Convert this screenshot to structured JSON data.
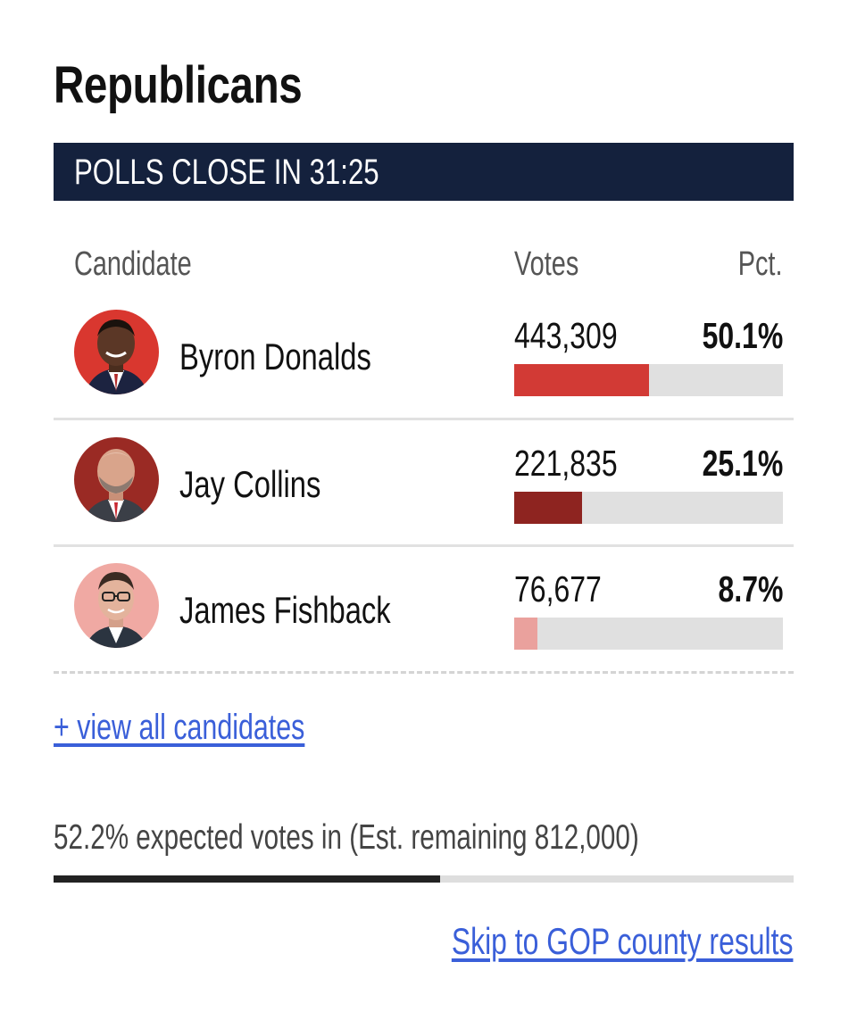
{
  "header": {
    "title": "Republicans",
    "banner": "POLLS CLOSE IN 31:25",
    "banner_color": "#14213d"
  },
  "table": {
    "columns": {
      "candidate": "Candidate",
      "votes": "Votes",
      "pct": "Pct."
    },
    "rows": [
      {
        "name": "Byron Donalds",
        "votes": "443,309",
        "pct": "50.1%",
        "share": 0.501,
        "bar_color": "#d23a35",
        "avatar_bg": "#d9372f"
      },
      {
        "name": "Jay Collins",
        "votes": "221,835",
        "pct": "25.1%",
        "share": 0.251,
        "bar_color": "#8e2420",
        "avatar_bg": "#9a2a24"
      },
      {
        "name": "James Fishback",
        "votes": "76,677",
        "pct": "8.7%",
        "share": 0.087,
        "bar_color": "#eaa19d",
        "avatar_bg": "#f0a9a3"
      }
    ]
  },
  "links": {
    "view_all": "+ view all candidates",
    "skip": "Skip to GOP county results",
    "link_color": "#3a5fd9"
  },
  "reporting": {
    "text": "52.2% expected votes in (Est. remaining 812,000)",
    "fraction": 0.522
  }
}
